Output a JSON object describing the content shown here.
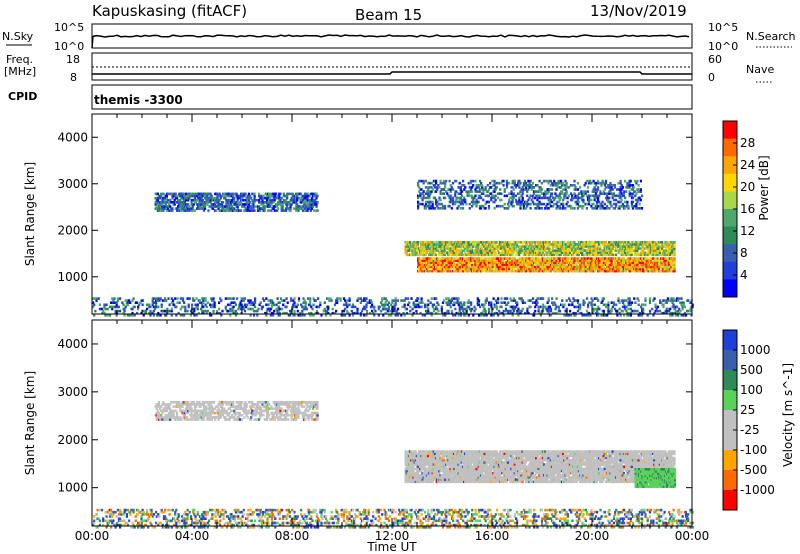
{
  "header": {
    "station": "Kapuskasing (fitACF)",
    "beam": "Beam 15",
    "date": "13/Nov/2019"
  },
  "top_panels": {
    "nsky_label": "N.Sky",
    "nsearch_label": "N.Search",
    "freq_label": "Freq.",
    "freq_unit": "[MHz]",
    "cpid_label": "CPID",
    "nave_label": "Nave",
    "cpid_value": "themis -3300",
    "noise_ticks_left": [
      "10^5",
      "10^0"
    ],
    "noise_ticks_right": [
      "10^5",
      "10^0"
    ],
    "freq_ticks": [
      "18",
      "8"
    ],
    "nave_ticks": [
      "60",
      "0"
    ]
  },
  "chart_data": [
    {
      "type": "heatmap",
      "panel": "power",
      "ylabel": "Slant Range [km]",
      "ylim": [
        200,
        4500
      ],
      "xlim_hours": [
        0,
        24
      ],
      "y_ticks": [
        1000,
        2000,
        3000,
        4000
      ],
      "colorbar_label": "Power [dB]",
      "colorbar_ticks": [
        "28",
        "24",
        "20",
        "16",
        "12",
        "8",
        "4"
      ],
      "colorbar_colors": [
        "#ff0000",
        "#ff6a00",
        "#ffa500",
        "#ffd700",
        "#a8d84a",
        "#4fa86b",
        "#2e8b57",
        "#3a5fb0",
        "#1f3fd8",
        "#0000ff"
      ],
      "regions": [
        {
          "t0": 0,
          "t1": 24,
          "r0": 200,
          "r1": 600,
          "level": "low",
          "density": 0.25
        },
        {
          "t0": 2.5,
          "t1": 9,
          "r0": 2450,
          "r1": 2850,
          "level": "low",
          "density": 0.55
        },
        {
          "t0": 12.5,
          "t1": 23.3,
          "r0": 1500,
          "r1": 1800,
          "level": "mid",
          "density": 0.75
        },
        {
          "t0": 13,
          "t1": 23.3,
          "r0": 1150,
          "r1": 1450,
          "level": "high",
          "density": 0.85
        },
        {
          "t0": 13,
          "t1": 22,
          "r0": 2500,
          "r1": 3100,
          "level": "low",
          "density": 0.3
        }
      ]
    },
    {
      "type": "heatmap",
      "panel": "velocity",
      "ylabel": "Slant Range [km]",
      "xlabel": "Time UT",
      "ylim": [
        200,
        4500
      ],
      "xlim_hours": [
        0,
        24
      ],
      "x_ticks": [
        "00:00",
        "04:00",
        "08:00",
        "12:00",
        "16:00",
        "20:00",
        "00:00"
      ],
      "y_ticks": [
        1000,
        2000,
        3000,
        4000
      ],
      "colorbar_label": "Velocity [m s^-1]",
      "colorbar_ticks": [
        "1000",
        "500",
        "100",
        "25",
        "-25",
        "-100",
        "-500",
        "-1000"
      ],
      "colorbar_colors": [
        "#1f3fd8",
        "#3a5fb0",
        "#2e8b57",
        "#5ad25a",
        "#c0c0c0",
        "#c0c0c0",
        "#ffa500",
        "#ff6a00",
        "#ff0000"
      ],
      "regions": [
        {
          "t0": 0,
          "t1": 24,
          "r0": 200,
          "r1": 600,
          "level": "mixed",
          "density": 0.3
        },
        {
          "t0": 2.5,
          "t1": 9,
          "r0": 2450,
          "r1": 2850,
          "level": "gray",
          "density": 0.5
        },
        {
          "t0": 12.5,
          "t1": 23.3,
          "r0": 1150,
          "r1": 1800,
          "level": "gray",
          "density": 0.85
        },
        {
          "t0": 21.7,
          "t1": 23.3,
          "r0": 1050,
          "r1": 1450,
          "level": "green",
          "density": 0.9
        }
      ]
    }
  ]
}
